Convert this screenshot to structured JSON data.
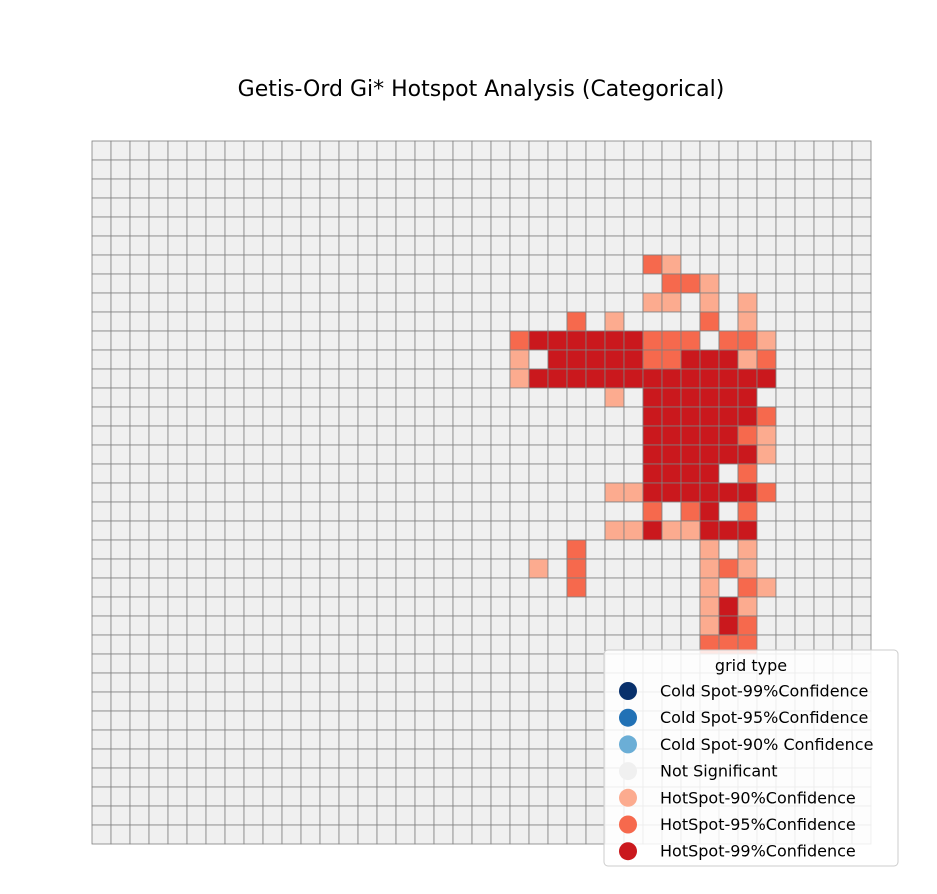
{
  "chart_data": {
    "type": "heatmap",
    "title": "Getis-Ord Gi* Hotspot Analysis (Categorical)",
    "grid": true,
    "rows": 37,
    "cols": 41,
    "legend": {
      "title": "grid type",
      "placement": "bottom-right",
      "entries": [
        {
          "code": "C99",
          "label": "Cold Spot-99%Confidence",
          "color": "#08306b"
        },
        {
          "code": "C95",
          "label": "Cold Spot-95%Confidence",
          "color": "#2171b5"
        },
        {
          "code": "C90",
          "label": "Cold Spot-90% Confidence",
          "color": "#6baed6"
        },
        {
          "code": "NS",
          "label": "Not Significant",
          "color": "#f0f0f0"
        },
        {
          "code": "H90",
          "label": "HotSpot-90%Confidence",
          "color": "#fcab8f"
        },
        {
          "code": "H95",
          "label": "HotSpot-95%Confidence",
          "color": "#f6694d"
        },
        {
          "code": "H99",
          "label": "HotSpot-99%Confidence",
          "color": "#ca181d"
        }
      ]
    },
    "default_category": "NS",
    "cells": {
      "H90": [
        [
          6,
          30
        ],
        [
          8,
          29
        ],
        [
          8,
          30
        ],
        [
          7,
          32
        ],
        [
          8,
          32
        ],
        [
          8,
          34
        ],
        [
          9,
          27
        ],
        [
          9,
          34
        ],
        [
          10,
          35
        ],
        [
          11,
          22
        ],
        [
          11,
          34
        ],
        [
          12,
          22
        ],
        [
          13,
          27
        ],
        [
          15,
          35
        ],
        [
          16,
          35
        ],
        [
          18,
          27
        ],
        [
          18,
          28
        ],
        [
          20,
          27
        ],
        [
          20,
          28
        ],
        [
          20,
          30
        ],
        [
          20,
          31
        ],
        [
          21,
          32
        ],
        [
          21,
          34
        ],
        [
          22,
          23
        ],
        [
          22,
          32
        ],
        [
          22,
          34
        ],
        [
          23,
          32
        ],
        [
          23,
          35
        ],
        [
          24,
          32
        ],
        [
          24,
          34
        ],
        [
          25,
          32
        ]
      ],
      "H95": [
        [
          6,
          29
        ],
        [
          7,
          30
        ],
        [
          7,
          31
        ],
        [
          9,
          25
        ],
        [
          9,
          32
        ],
        [
          10,
          22
        ],
        [
          10,
          29
        ],
        [
          10,
          30
        ],
        [
          10,
          31
        ],
        [
          10,
          33
        ],
        [
          10,
          34
        ],
        [
          11,
          29
        ],
        [
          11,
          30
        ],
        [
          11,
          35
        ],
        [
          14,
          35
        ],
        [
          15,
          34
        ],
        [
          17,
          34
        ],
        [
          18,
          35
        ],
        [
          19,
          29
        ],
        [
          19,
          31
        ],
        [
          19,
          34
        ],
        [
          21,
          25
        ],
        [
          22,
          25
        ],
        [
          22,
          33
        ],
        [
          23,
          25
        ],
        [
          23,
          34
        ],
        [
          25,
          34
        ],
        [
          26,
          32
        ],
        [
          26,
          33
        ],
        [
          26,
          34
        ]
      ],
      "H99": [
        [
          10,
          23
        ],
        [
          10,
          24
        ],
        [
          10,
          25
        ],
        [
          10,
          26
        ],
        [
          10,
          27
        ],
        [
          10,
          28
        ],
        [
          11,
          24
        ],
        [
          11,
          25
        ],
        [
          11,
          26
        ],
        [
          11,
          27
        ],
        [
          11,
          28
        ],
        [
          11,
          31
        ],
        [
          11,
          32
        ],
        [
          11,
          33
        ],
        [
          12,
          23
        ],
        [
          12,
          24
        ],
        [
          12,
          25
        ],
        [
          12,
          26
        ],
        [
          12,
          27
        ],
        [
          12,
          28
        ],
        [
          12,
          29
        ],
        [
          12,
          30
        ],
        [
          12,
          31
        ],
        [
          12,
          32
        ],
        [
          12,
          33
        ],
        [
          12,
          34
        ],
        [
          12,
          35
        ],
        [
          13,
          29
        ],
        [
          13,
          30
        ],
        [
          13,
          31
        ],
        [
          13,
          32
        ],
        [
          13,
          33
        ],
        [
          13,
          34
        ],
        [
          14,
          29
        ],
        [
          14,
          30
        ],
        [
          14,
          31
        ],
        [
          14,
          32
        ],
        [
          14,
          33
        ],
        [
          14,
          34
        ],
        [
          15,
          29
        ],
        [
          15,
          30
        ],
        [
          15,
          31
        ],
        [
          15,
          32
        ],
        [
          15,
          33
        ],
        [
          16,
          29
        ],
        [
          16,
          30
        ],
        [
          16,
          31
        ],
        [
          16,
          32
        ],
        [
          16,
          33
        ],
        [
          16,
          34
        ],
        [
          17,
          29
        ],
        [
          17,
          30
        ],
        [
          17,
          31
        ],
        [
          17,
          32
        ],
        [
          18,
          29
        ],
        [
          18,
          30
        ],
        [
          18,
          31
        ],
        [
          18,
          32
        ],
        [
          18,
          33
        ],
        [
          18,
          34
        ],
        [
          19,
          32
        ],
        [
          20,
          29
        ],
        [
          20,
          32
        ],
        [
          20,
          33
        ],
        [
          20,
          34
        ],
        [
          24,
          33
        ],
        [
          25,
          33
        ]
      ]
    }
  }
}
